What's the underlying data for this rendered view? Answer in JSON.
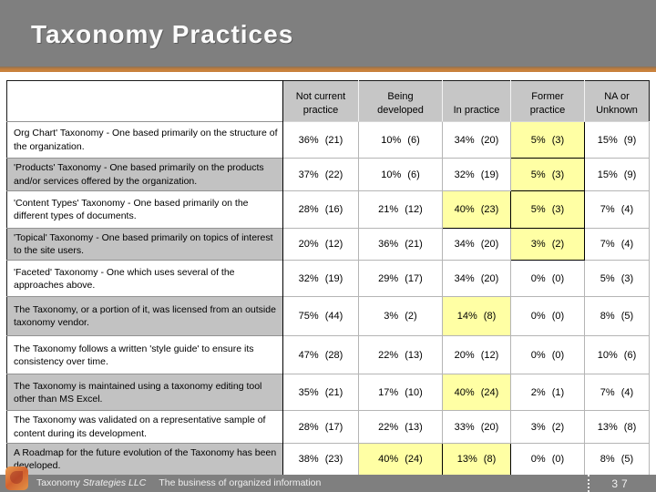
{
  "slide": {
    "title": "Taxonomy Practices",
    "footer": {
      "company_regular": "Taxonomy",
      "company_italic": "Strategies LLC",
      "tagline": "The business of organized information",
      "page_number": "37",
      "logo_icon": "taxonomy-strategies-logo"
    },
    "colors": {
      "masthead_gray": "#7f7f7f",
      "accent_orange": "#c8813c",
      "table_header_gray": "#c6c6c6",
      "row_stripe_gray": "#c2c2c2",
      "highlight_yellow": "#ffffa4",
      "footer_gray": "#7f7f7f"
    }
  },
  "table": {
    "column_headers": [
      "",
      "Not current\npractice",
      "Being\ndeveloped",
      "In practice",
      "Former\npractice",
      "NA or\nUnknown"
    ],
    "rows": [
      {
        "label": "Org Chart' Taxonomy - One based primarily on the structure of the organization.",
        "cells": [
          {
            "t": "36% (21)",
            "s": ""
          },
          {
            "t": "10% (6)",
            "s": ""
          },
          {
            "t": "34% (20)",
            "s": ""
          },
          {
            "t": "5% (3)",
            "s": "yb"
          },
          {
            "t": "15% (9)",
            "s": ""
          }
        ]
      },
      {
        "label": "'Products' Taxonomy - One based primarily on the products and/or services offered by the organization.",
        "cells": [
          {
            "t": "37% (22)",
            "s": ""
          },
          {
            "t": "10% (6)",
            "s": ""
          },
          {
            "t": "32% (19)",
            "s": ""
          },
          {
            "t": "5% (3)",
            "s": "yb"
          },
          {
            "t": "15% (9)",
            "s": ""
          }
        ]
      },
      {
        "label": "'Content Types' Taxonomy - One based primarily on the different types of documents.",
        "cells": [
          {
            "t": "28% (16)",
            "s": ""
          },
          {
            "t": "21% (12)",
            "s": ""
          },
          {
            "t": "40% (23)",
            "s": "yb"
          },
          {
            "t": "5% (3)",
            "s": "yb"
          },
          {
            "t": "7% (4)",
            "s": ""
          }
        ]
      },
      {
        "label": "'Topical' Taxonomy - One based primarily on topics of interest to the site users.",
        "cells": [
          {
            "t": "20% (12)",
            "s": ""
          },
          {
            "t": "36% (21)",
            "s": ""
          },
          {
            "t": "34% (20)",
            "s": ""
          },
          {
            "t": "3% (2)",
            "s": "yb"
          },
          {
            "t": "7% (4)",
            "s": ""
          }
        ]
      },
      {
        "label": "'Faceted' Taxonomy - One which uses several of the approaches above.",
        "cells": [
          {
            "t": "32% (19)",
            "s": ""
          },
          {
            "t": "29% (17)",
            "s": ""
          },
          {
            "t": "34% (20)",
            "s": ""
          },
          {
            "t": "0% (0)",
            "s": ""
          },
          {
            "t": "5% (3)",
            "s": ""
          }
        ]
      },
      {
        "label": "The Taxonomy, or a portion of it, was licensed from an outside taxonomy vendor.",
        "cells": [
          {
            "t": "75% (44)",
            "s": ""
          },
          {
            "t": "3% (2)",
            "s": ""
          },
          {
            "t": "14% (8)",
            "s": "y"
          },
          {
            "t": "0% (0)",
            "s": ""
          },
          {
            "t": "8% (5)",
            "s": ""
          }
        ]
      },
      {
        "label": "The Taxonomy follows a written 'style guide' to ensure its consistency over time.",
        "cells": [
          {
            "t": "47% (28)",
            "s": ""
          },
          {
            "t": "22% (13)",
            "s": ""
          },
          {
            "t": "20% (12)",
            "s": ""
          },
          {
            "t": "0% (0)",
            "s": ""
          },
          {
            "t": "10% (6)",
            "s": ""
          }
        ]
      },
      {
        "label": "The Taxonomy is maintained using a taxonomy editing tool other than MS Excel.",
        "cells": [
          {
            "t": "35% (21)",
            "s": ""
          },
          {
            "t": "17% (10)",
            "s": ""
          },
          {
            "t": "40% (24)",
            "s": "y"
          },
          {
            "t": "2% (1)",
            "s": ""
          },
          {
            "t": "7% (4)",
            "s": ""
          }
        ]
      },
      {
        "label": "The Taxonomy was validated on a representative sample of content during its development.",
        "cells": [
          {
            "t": "28% (17)",
            "s": ""
          },
          {
            "t": "22% (13)",
            "s": ""
          },
          {
            "t": "33% (20)",
            "s": ""
          },
          {
            "t": "3% (2)",
            "s": ""
          },
          {
            "t": "13% (8)",
            "s": ""
          }
        ]
      },
      {
        "label": "A Roadmap for the future evolution of the Taxonomy has been developed.",
        "cells": [
          {
            "t": "38% (23)",
            "s": ""
          },
          {
            "t": "40% (24)",
            "s": "yb"
          },
          {
            "t": "13% (8)",
            "s": "yb"
          },
          {
            "t": "0% (0)",
            "s": ""
          },
          {
            "t": "8% (5)",
            "s": ""
          }
        ]
      }
    ]
  }
}
